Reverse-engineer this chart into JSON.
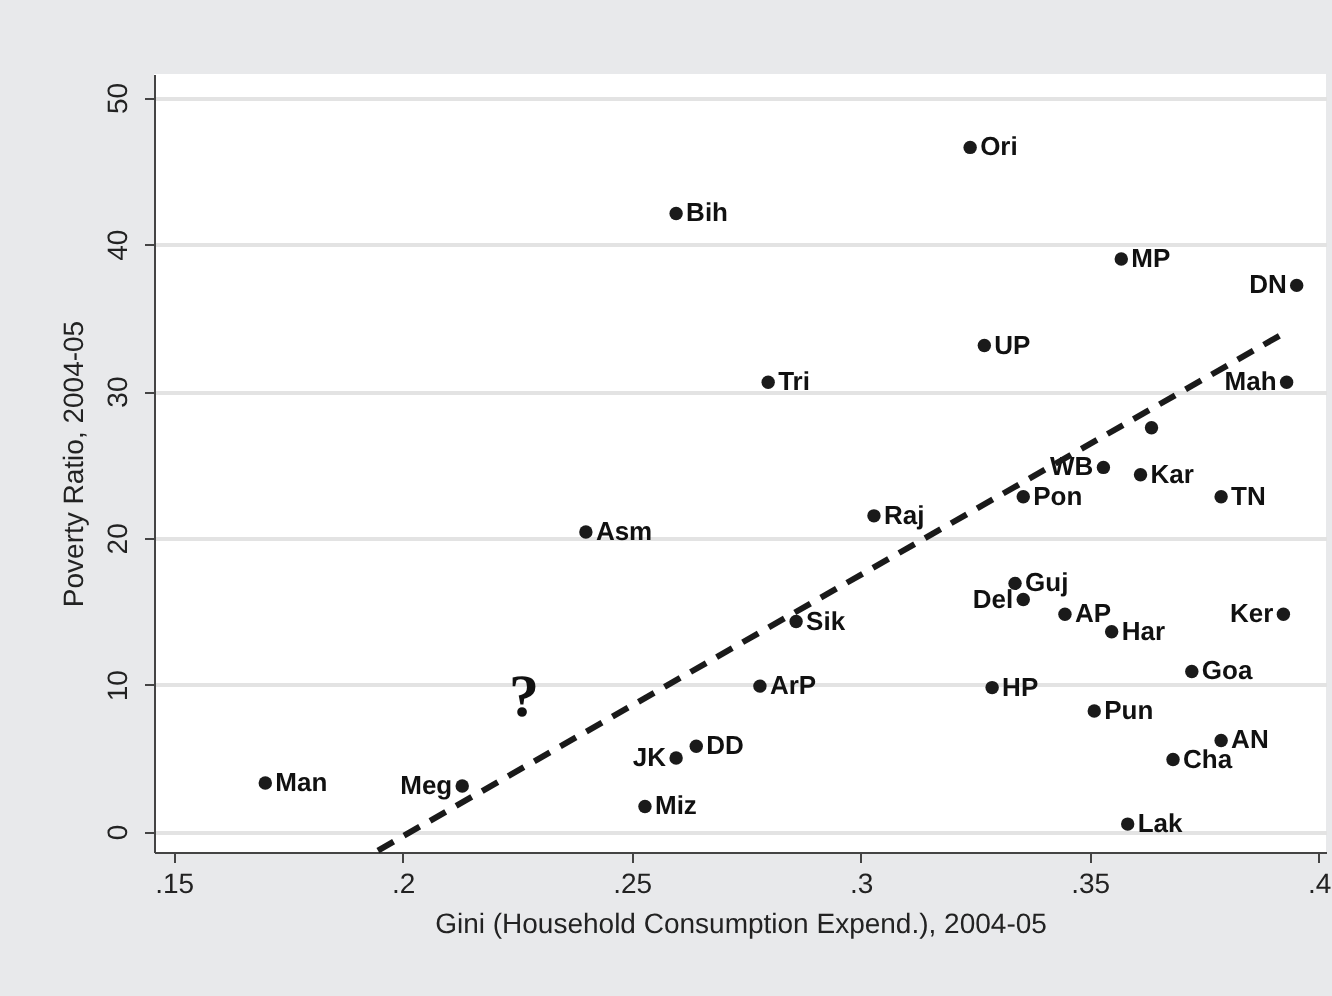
{
  "chart_data": {
    "type": "scatter",
    "xlabel": "Gini (Household Consumption Expend.), 2004-05",
    "ylabel": "Poverty Ratio, 2004-05",
    "xlim": [
      0.1457,
      0.4016
    ],
    "ylim": [
      -1.4,
      51.6
    ],
    "xticks": [
      {
        "value": 0.15,
        "label": ".15"
      },
      {
        "value": 0.2,
        "label": ".2"
      },
      {
        "value": 0.25,
        "label": ".25"
      },
      {
        "value": 0.3,
        "label": ".3"
      },
      {
        "value": 0.35,
        "label": ".35"
      },
      {
        "value": 0.4,
        "label": ".4"
      }
    ],
    "yticks": [
      0,
      10,
      20,
      30,
      40,
      50
    ],
    "grid": "y",
    "annotations": [
      "?"
    ],
    "series": [
      {
        "marker": "circle",
        "color": "#1a1a1a",
        "x": [
          0.17,
          0.213,
          0.24,
          0.2597,
          0.2641,
          0.2529,
          0.278,
          0.2859,
          0.3029,
          0.2798,
          0.2597,
          0.3239,
          0.327,
          0.3569,
          0.3952,
          0.393,
          0.3635,
          0.353,
          0.3611,
          0.3355,
          0.3787,
          0.3337,
          0.3355,
          0.3446,
          0.3548,
          0.3923,
          0.3287,
          0.3723,
          0.351,
          0.3787,
          0.3682,
          0.3583
        ],
        "values": [
          3.3,
          3.1,
          20.4,
          5.0,
          5.8,
          1.7,
          9.9,
          14.3,
          21.5,
          30.6,
          42.1,
          46.6,
          33.1,
          39.0,
          37.2,
          30.6,
          27.5,
          24.8,
          24.3,
          22.8,
          22.8,
          16.9,
          15.8,
          14.8,
          13.6,
          14.8,
          9.8,
          10.9,
          8.2,
          6.2,
          4.9,
          0.5
        ],
        "value_labels": [
          "Man",
          "Meg",
          "Asm",
          "JK",
          "DD",
          "Miz",
          "ArP",
          "Sik",
          "Raj",
          "Tri",
          "Bih",
          "Ori",
          "UP",
          "MP",
          "DN",
          "Mah",
          null,
          "WB",
          "Kar",
          "Pon",
          "TN",
          "Guj",
          "Del",
          "AP",
          "Har",
          "Ker",
          "HP",
          "Goa",
          "Pun",
          "AN",
          "Cha",
          "Lak"
        ]
      },
      {
        "type": "line",
        "color": "#1a1a1a",
        "line_style": "dashed",
        "x": [
          0.1946,
          0.3933
        ],
        "values": [
          -1.3,
          34.1
        ]
      }
    ]
  }
}
